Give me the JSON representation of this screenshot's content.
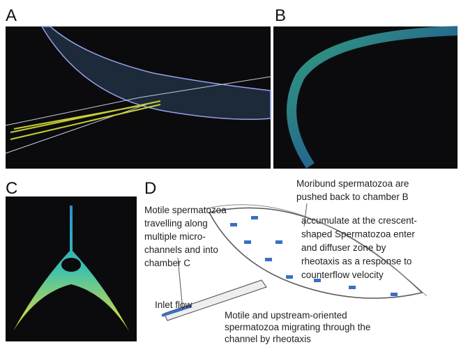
{
  "panels": [
    {
      "label": "A"
    },
    {
      "label": "B"
    },
    {
      "label": "C"
    },
    {
      "label": "D"
    }
  ],
  "annotations": [
    {
      "lines": [
        "Moribund spermatozoa are",
        "pushed back to chamber B"
      ]
    },
    {
      "lines": [
        "Motile spermatozoa",
        "travelling along",
        "multiple micro-",
        "channels and into",
        "chamber C"
      ]
    },
    {
      "lines": [
        "accumulate at the crescent-",
        "shaped Spermatozoa enter",
        "and  diffuser zone by",
        "rheotaxis as a response to",
        "counterflow velocity"
      ]
    },
    {
      "lines": [
        "Inlet flow"
      ]
    },
    {
      "lines": [
        "Motile and upstream-oriented",
        "spermatozoa migrating through the",
        "channel by rheotaxis"
      ]
    }
  ]
}
